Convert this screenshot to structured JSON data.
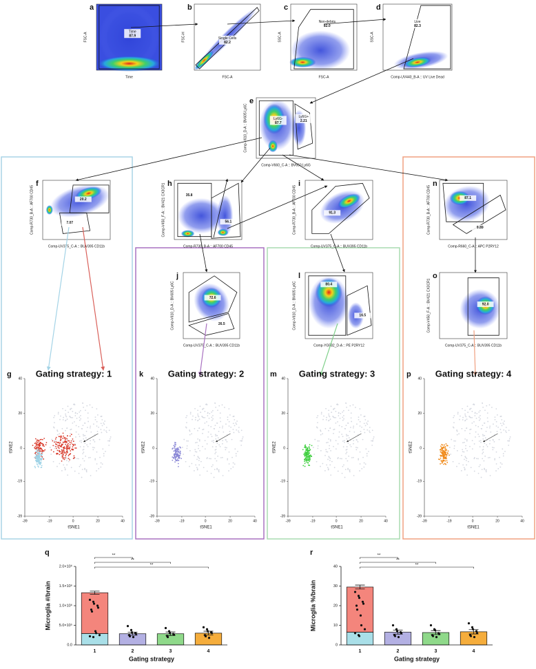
{
  "panels": [
    {
      "id": "a",
      "xlabel": "Time",
      "ylabel": "FSC-A",
      "gates": [
        {
          "name": "Time",
          "value": "87.9"
        }
      ]
    },
    {
      "id": "b",
      "xlabel": "FSC-A",
      "ylabel": "FSC-H",
      "gates": [
        {
          "name": "Single Cells",
          "value": "82.2"
        }
      ]
    },
    {
      "id": "c",
      "xlabel": "FSC-A",
      "ylabel": "SSC-A",
      "gates": [
        {
          "name": "Non-debris",
          "value": "82.0"
        }
      ]
    },
    {
      "id": "d",
      "xlabel": "Comp-UV440_B-A :: UV Live Dead",
      "ylabel": "SSC-A",
      "gates": [
        {
          "name": "Live",
          "value": "82.3"
        }
      ]
    },
    {
      "id": "e",
      "xlabel": "Comp-V660_C-A :: BV650 Ly6G",
      "ylabel": "Comp-V610_D-A :: BV605 Ly6C",
      "gates": [
        {
          "name": "Ly6G-",
          "value": "87.7"
        },
        {
          "name": "Ly6G+",
          "value": "2.21"
        }
      ]
    },
    {
      "id": "f",
      "xlabel": "Comp-UV375_C-A :: BUV395 CD11b",
      "ylabel": "Comp-R730_B-A :: AF700 CD45",
      "gates": [
        {
          "value": "20.2"
        },
        {
          "value": "7.07"
        }
      ]
    },
    {
      "id": "h",
      "xlabel": "Comp-R730_B-A :: AF700 CD45",
      "ylabel": "Comp-V450_F-A :: BV421 CX3CR1",
      "gates": [
        {
          "value": "35.8"
        },
        {
          "value": "56.1"
        }
      ]
    },
    {
      "id": "i",
      "xlabel": "Comp-UV375_C-A :: BUV395 CD11b",
      "ylabel": "Comp-R730_B-A :: AF700 CD45",
      "gates": [
        {
          "value": "91.3"
        }
      ]
    },
    {
      "id": "n",
      "xlabel": "Comp-R660_C-A :: APC P2RY12",
      "ylabel": "Comp-R730_B-A :: AF700 CD45",
      "gates": [
        {
          "value": "87.1"
        },
        {
          "value": "9.89"
        }
      ]
    },
    {
      "id": "j",
      "xlabel": "Comp-UV375_C-A :: BUV395 CD11b",
      "ylabel": "Comp-V610_D-A :: BV605 Ly6C",
      "gates": [
        {
          "value": "72.6"
        },
        {
          "value": "26.5"
        }
      ]
    },
    {
      "id": "l",
      "xlabel": "Comp-YG582_D-A :: PE P2RY12",
      "ylabel": "Comp-V610_D-A :: BV605 Ly6C",
      "gates": [
        {
          "value": "80.4"
        },
        {
          "value": "16.5"
        }
      ]
    },
    {
      "id": "o",
      "xlabel": "Comp-UV375_C-A :: BUV395 CD11b",
      "ylabel": "Comp-V450_F-A :: BV421 CX3CR1",
      "gates": [
        {
          "value": "92.0"
        }
      ]
    }
  ],
  "tsne": [
    {
      "id": "g",
      "title": "Gating strategy: 1",
      "title_color": "#a3d3e6",
      "colors": [
        "#d93a2b",
        "#9fd3e6"
      ],
      "xlabel": "tSNE1",
      "ylabel": "tSNE2",
      "xlim": [
        -39,
        40
      ],
      "ylim": [
        -39,
        40
      ],
      "xticks": [
        -39,
        -19,
        0,
        20,
        40
      ],
      "yticks": [
        -39,
        -19,
        0,
        20,
        40
      ]
    },
    {
      "id": "k",
      "title": "Gating strategy: 2",
      "title_color": "#7b2a96",
      "colors": [
        "#8b88d6"
      ],
      "xlabel": "tSNE1",
      "ylabel": "tSNE2",
      "xlim": [
        -39,
        40
      ],
      "ylim": [
        -39,
        40
      ],
      "xticks": [
        -39,
        -19,
        0,
        20,
        40
      ],
      "yticks": [
        -39,
        -19,
        0,
        20,
        40
      ]
    },
    {
      "id": "m",
      "title": "Gating strategy: 3",
      "title_color": "#5cc96a",
      "colors": [
        "#3fcf3f"
      ],
      "xlabel": "tSNE1",
      "ylabel": "tSNE2",
      "xlim": [
        -39,
        40
      ],
      "ylim": [
        -39,
        40
      ],
      "xticks": [
        -39,
        -19,
        0,
        20,
        40
      ],
      "yticks": [
        -39,
        -19,
        0,
        20,
        40
      ]
    },
    {
      "id": "p",
      "title": "Gating strategy: 4",
      "title_color": "#ef7a1c",
      "colors": [
        "#f08a1a"
      ],
      "xlabel": "tSNE1",
      "ylabel": "tSNE2",
      "xlim": [
        -39,
        40
      ],
      "ylim": [
        -39,
        40
      ],
      "xticks": [
        -39,
        -19,
        0,
        20,
        40
      ],
      "yticks": [
        -39,
        -19,
        0,
        20,
        40
      ]
    }
  ],
  "chart_data": [
    {
      "type": "bar",
      "label": "q",
      "xlabel": "Gating strategy",
      "ylabel": "Microglia #/brain",
      "categories": [
        "1",
        "2",
        "3",
        "4"
      ],
      "series": [
        {
          "colors": [
            "#a9dfe8",
            "#b3b0e3",
            "#8fd98a",
            "#f5ad3c"
          ],
          "values": [
            290000,
            285000,
            285000,
            300000
          ]
        },
        {
          "color": "#f4857c",
          "values": [
            1040000,
            null,
            null,
            null
          ]
        }
      ],
      "errors": [
        40000,
        40000,
        45000,
        50000
      ],
      "points": [
        [
          1150000,
          1100000,
          1050000,
          1000000,
          950000,
          900000,
          850000,
          350000,
          300000,
          250000,
          220000,
          200000
        ],
        [
          480000,
          380000,
          320000,
          300000,
          280000,
          250000,
          220000,
          200000
        ],
        [
          430000,
          350000,
          300000,
          280000,
          260000,
          230000,
          200000
        ],
        [
          450000,
          400000,
          350000,
          320000,
          300000,
          250000,
          220000,
          180000
        ]
      ],
      "comparisons": [
        {
          "from": 0,
          "to": 1,
          "label": "**"
        },
        {
          "from": 0,
          "to": 2,
          "label": "**"
        },
        {
          "from": 0,
          "to": 3,
          "label": "**"
        }
      ],
      "ylim": [
        0,
        2000000
      ],
      "yticks": [
        {
          "value": 0,
          "label": "0.0"
        },
        {
          "value": 500000,
          "label": "5.0×10⁵"
        },
        {
          "value": 1000000,
          "label": "1.0×10⁶"
        },
        {
          "value": 1500000,
          "label": "1.5×10⁶"
        },
        {
          "value": 2000000,
          "label": "2.0×10⁶"
        }
      ]
    },
    {
      "type": "bar",
      "label": "r",
      "xlabel": "Gating strategy",
      "ylabel": "Microglia %/brain",
      "categories": [
        "1",
        "2",
        "3",
        "4"
      ],
      "series": [
        {
          "colors": [
            "#a9dfe8",
            "#b3b0e3",
            "#8fd98a",
            "#f5ad3c"
          ],
          "values": [
            6.5,
            6.5,
            6.3,
            6.7
          ]
        },
        {
          "color": "#f4857c",
          "values": [
            23,
            null,
            null,
            null
          ]
        }
      ],
      "errors": [
        1,
        1,
        1,
        1.1
      ],
      "points": [
        [
          27,
          25,
          24,
          22,
          21,
          20,
          18,
          15,
          10,
          8,
          6,
          5,
          4.5
        ],
        [
          10,
          8,
          7,
          6.5,
          6,
          5,
          4.5,
          4
        ],
        [
          10,
          8,
          7.5,
          6,
          5.5,
          5,
          4.5,
          4
        ],
        [
          11,
          9,
          8,
          7,
          6,
          5,
          4.5,
          4
        ]
      ],
      "comparisons": [
        {
          "from": 0,
          "to": 1,
          "label": "**"
        },
        {
          "from": 0,
          "to": 2,
          "label": "**"
        },
        {
          "from": 0,
          "to": 3,
          "label": "**"
        }
      ],
      "ylim": [
        0,
        40
      ],
      "yticks": [
        0,
        10,
        20,
        30,
        40
      ]
    }
  ]
}
